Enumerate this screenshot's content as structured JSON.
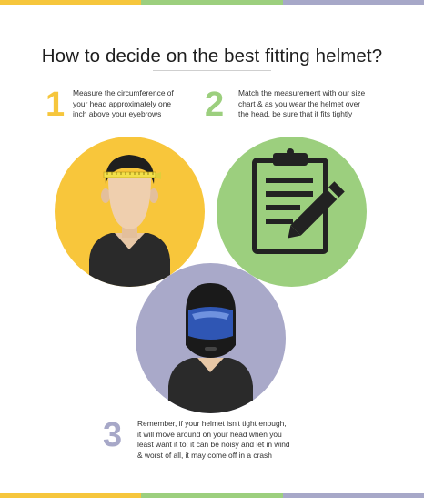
{
  "colors": {
    "yellow": "#f8c63b",
    "green": "#9ccf7e",
    "lavender": "#a9a9c9",
    "bar_yellow": "#f6c63c",
    "bar_green": "#9ccf7e",
    "bar_lavender": "#a7a8c8",
    "clipboard": "#222222",
    "visor": "#2f56b4"
  },
  "title": "How to decide on the best fitting helmet?",
  "steps": [
    {
      "number": "1",
      "lines": [
        "Measure the circumference of",
        "your head approximately one",
        "inch above your eyebrows"
      ]
    },
    {
      "number": "2",
      "lines": [
        "Match the measurement with our size",
        "chart & as you wear the helmet over",
        "the head, be sure that it fits tightly"
      ]
    },
    {
      "number": "3",
      "lines": [
        "Remember, if your helmet isn't tight enough,",
        "it will move around on your head when you",
        "least want it to; it can be noisy and let in wind",
        "& worst of all, it may come off in a crash"
      ]
    }
  ],
  "icons": {
    "step1": "head-measuring-tape-icon",
    "step2": "clipboard-pencil-icon",
    "step3": "helmet-rider-icon"
  }
}
